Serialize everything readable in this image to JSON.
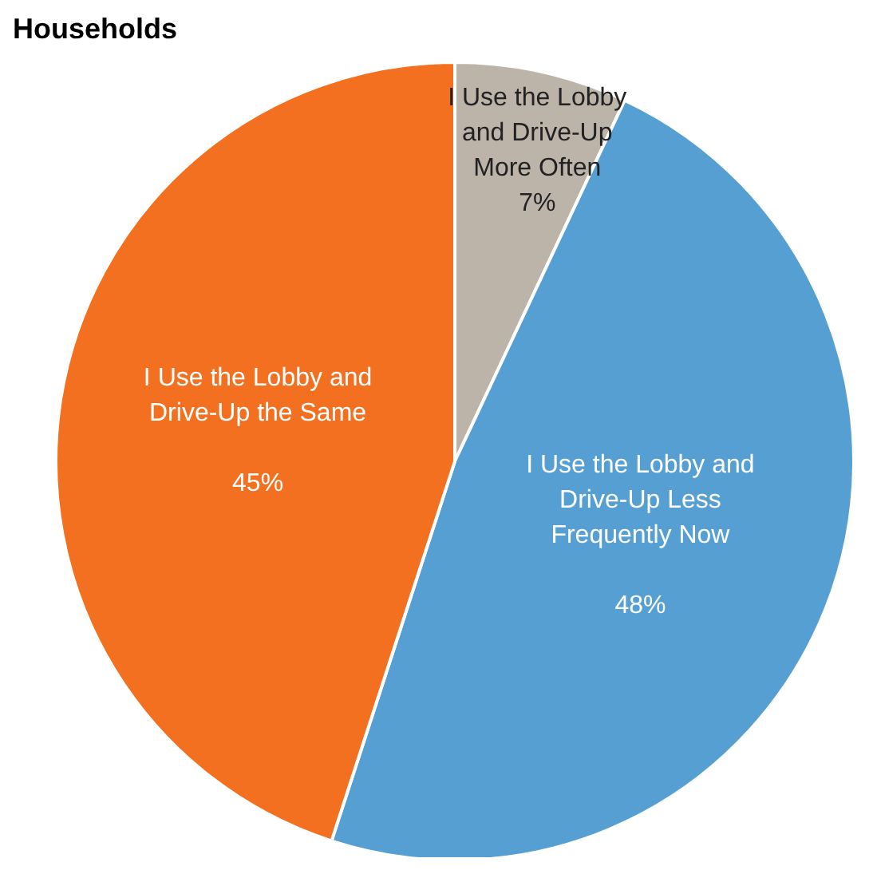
{
  "chart_data": {
    "type": "pie",
    "title": "Households",
    "categories": [
      "I Use the Lobby and Drive-Up More Often",
      "I Use the Lobby and Drive-Up Less Frequently Now",
      "I Use the Lobby and Drive-Up the Same"
    ],
    "values": [
      7,
      48,
      45
    ],
    "colors": [
      "#bcb3a9",
      "#569fd3",
      "#f37021"
    ],
    "value_labels": [
      "7%",
      "48%",
      "45%"
    ]
  }
}
